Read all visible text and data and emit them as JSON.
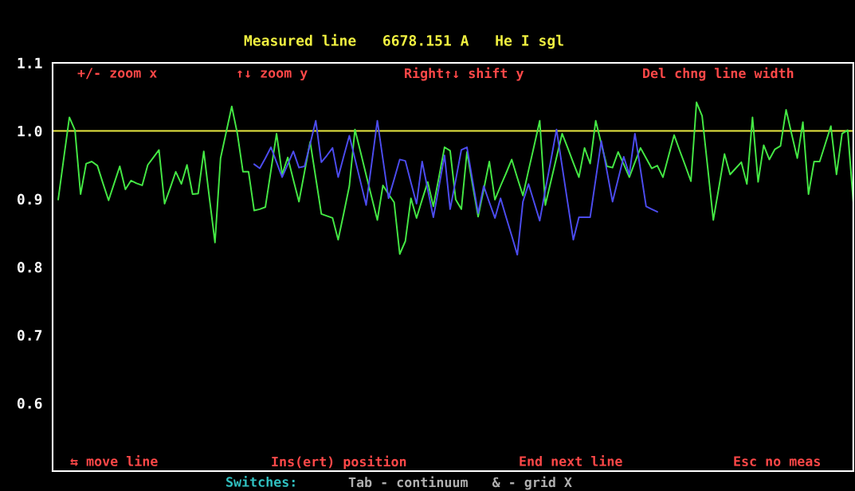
{
  "chart_data": {
    "type": "line",
    "title": "Measured line   6678.151 A   He I sgl",
    "annotations": [
      "+/- zoom x",
      "↑↓ zoom y",
      "Right↑↓ shift y",
      "Del chng line width",
      "⇆ move line",
      "Ins(ert) position",
      "End next line",
      "Esc no meas",
      "Switches:",
      "Tab - continuum   & - grid X"
    ],
    "categories": [
      null,
      null,
      null,
      null,
      null,
      null,
      null,
      null,
      null,
      null,
      null,
      null,
      null,
      null,
      null,
      null,
      null,
      null,
      null,
      null,
      null,
      null,
      null,
      null,
      null,
      null,
      null,
      null,
      null,
      null,
      null,
      null,
      null,
      null,
      null,
      null,
      null,
      null,
      null,
      null,
      null,
      null,
      null,
      null,
      null,
      null,
      null,
      null,
      null,
      null,
      null,
      null,
      null,
      null,
      null,
      null,
      null,
      null,
      null,
      null,
      null,
      null,
      null,
      null,
      null,
      null,
      null,
      null,
      null,
      null,
      null,
      null,
      null,
      null,
      null,
      null,
      null,
      null,
      null,
      null,
      null,
      null,
      null,
      null,
      null,
      null,
      null,
      null,
      null,
      null,
      null,
      null,
      null,
      null,
      null,
      null,
      null,
      null,
      null,
      null,
      null,
      null,
      null,
      null,
      null,
      null,
      null,
      null,
      null,
      null,
      null,
      null,
      null,
      null,
      null,
      null,
      null,
      null,
      null,
      null,
      null,
      null,
      null,
      null,
      null,
      null,
      null,
      null,
      null,
      null,
      null,
      null,
      null,
      null,
      null,
      null,
      null,
      null,
      null,
      null,
      null,
      null,
      null,
      null
    ],
    "ylim": [
      0.5,
      1.1
    ],
    "yticks": [
      {
        "value": 0.6,
        "label": "0.6"
      },
      {
        "value": 0.7,
        "label": "0.7"
      },
      {
        "value": 0.8,
        "label": "0.8"
      },
      {
        "value": 0.9,
        "label": "0.9"
      },
      {
        "value": 1.0,
        "label": "1.0"
      },
      {
        "value": 1.1,
        "label": "1.1"
      }
    ],
    "tick_labels": "y",
    "grid": false,
    "ref_lines": [
      {
        "axis": "y",
        "value": 1.0,
        "color": "#e8e840"
      }
    ],
    "series": [
      {
        "color": "#44e844",
        "values": [
          null,
          0.899,
          0.96,
          1.02,
          1.001,
          0.907,
          0.952,
          0.955,
          0.949,
          0.923,
          0.898,
          0.923,
          0.948,
          0.914,
          0.927,
          0.923,
          0.92,
          0.95,
          0.961,
          0.972,
          0.893,
          0.916,
          0.94,
          0.922,
          0.95,
          0.907,
          0.908,
          0.97,
          0.902,
          0.836,
          0.96,
          0.998,
          1.036,
          0.996,
          0.94,
          0.94,
          0.883,
          0.885,
          0.888,
          0.942,
          0.996,
          0.936,
          0.961,
          0.928,
          0.896,
          0.94,
          0.984,
          0.931,
          0.878,
          0.875,
          0.872,
          0.84,
          0.879,
          0.919,
          1.002,
          0.969,
          0.935,
          0.902,
          0.869,
          0.92,
          0.907,
          0.895,
          0.819,
          0.838,
          0.901,
          0.872,
          0.899,
          0.925,
          0.889,
          0.932,
          0.976,
          0.971,
          0.899,
          0.885,
          0.969,
          0.921,
          0.874,
          0.914,
          0.955,
          0.899,
          0.919,
          0.938,
          0.958,
          0.931,
          0.905,
          0.942,
          0.978,
          1.015,
          0.891,
          0.926,
          0.961,
          0.996,
          0.975,
          0.953,
          0.932,
          0.975,
          0.952,
          1.015,
          0.981,
          0.948,
          0.946,
          0.969,
          0.951,
          0.932,
          0.954,
          0.975,
          0.96,
          0.945,
          0.949,
          0.932,
          0.963,
          0.994,
          0.971,
          0.949,
          0.926,
          1.042,
          1.022,
          0.946,
          0.869,
          0.917,
          0.966,
          0.936,
          0.945,
          0.954,
          0.922,
          1.02,
          0.925,
          0.979,
          0.958,
          0.973,
          0.978,
          1.031,
          0.995,
          0.96,
          1.013,
          0.907,
          0.955,
          0.955,
          0.981,
          1.007,
          0.936,
          0.996,
          1.001,
          0.896
        ]
      },
      {
        "color": "#4c4cf0",
        "values": [
          null,
          null,
          null,
          null,
          null,
          null,
          null,
          null,
          null,
          null,
          null,
          null,
          null,
          null,
          null,
          null,
          null,
          null,
          null,
          null,
          null,
          null,
          null,
          null,
          null,
          null,
          null,
          null,
          null,
          null,
          null,
          null,
          null,
          null,
          null,
          null,
          0.951,
          0.945,
          0.96,
          0.976,
          0.954,
          0.932,
          0.951,
          0.97,
          0.946,
          0.948,
          0.981,
          1.015,
          0.954,
          0.964,
          0.975,
          0.932,
          0.963,
          0.993,
          0.959,
          0.925,
          0.891,
          0.953,
          1.015,
          0.958,
          0.901,
          0.929,
          0.958,
          0.956,
          0.924,
          0.893,
          0.955,
          0.914,
          0.873,
          0.918,
          0.964,
          0.885,
          0.928,
          0.972,
          0.976,
          0.927,
          0.879,
          0.919,
          0.895,
          0.872,
          0.901,
          0.873,
          0.846,
          0.818,
          0.896,
          0.922,
          0.895,
          0.868,
          0.913,
          0.957,
          1.002,
          0.948,
          0.894,
          0.84,
          0.873,
          0.873,
          0.873,
          0.929,
          0.985,
          0.941,
          0.896,
          0.929,
          0.962,
          0.936,
          0.996,
          0.943,
          0.889,
          0.885,
          0.881,
          null,
          null,
          null,
          null,
          null,
          null,
          null,
          null,
          null,
          null,
          null,
          null,
          null,
          null,
          null,
          null,
          null,
          null,
          null,
          null,
          null,
          null,
          null,
          null,
          null,
          null,
          null,
          null,
          null,
          null,
          null,
          null,
          null,
          null,
          null
        ]
      }
    ]
  }
}
